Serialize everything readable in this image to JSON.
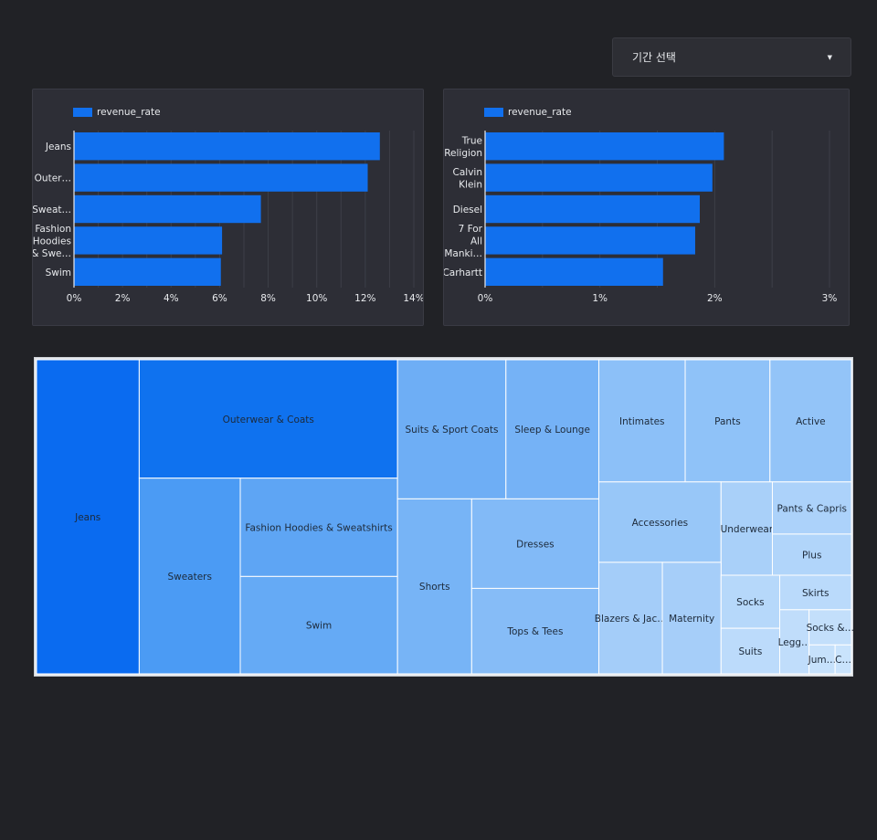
{
  "filter": {
    "label": "기간 선택",
    "arrow_icon": "caret-down-icon"
  },
  "chart_data": [
    {
      "type": "bar",
      "orientation": "horizontal",
      "title": "",
      "legend": "revenue_rate",
      "categories": [
        "Jeans",
        "Outer…",
        "Sweat…",
        "Fashion Hoodies & Swe…",
        "Swim"
      ],
      "values": [
        12.6,
        12.1,
        7.7,
        6.1,
        6.05
      ],
      "xlim": [
        0,
        14
      ],
      "xticks": [
        "0%",
        "2%",
        "4%",
        "6%",
        "8%",
        "10%",
        "12%",
        "14%"
      ],
      "color": "#1170ee"
    },
    {
      "type": "bar",
      "orientation": "horizontal",
      "title": "",
      "legend": "revenue_rate",
      "categories": [
        "True Religion",
        "Calvin Klein",
        "Diesel",
        "7 For All Manki…",
        "Carhartt"
      ],
      "values": [
        2.08,
        1.98,
        1.87,
        1.83,
        1.55
      ],
      "xlim": [
        0,
        3
      ],
      "xticks": [
        "0%",
        "1%",
        "2%",
        "3%"
      ],
      "color": "#1170ee"
    },
    {
      "type": "treemap",
      "title": "",
      "items": [
        {
          "label": "Jeans"
        },
        {
          "label": "Outerwear & Coats"
        },
        {
          "label": "Sweaters"
        },
        {
          "label": "Fashion Hoodies & Sweatshirts"
        },
        {
          "label": "Swim"
        },
        {
          "label": "Suits & Sport Coats"
        },
        {
          "label": "Sleep & Lounge"
        },
        {
          "label": "Shorts"
        },
        {
          "label": "Dresses"
        },
        {
          "label": "Tops & Tees"
        },
        {
          "label": "Intimates"
        },
        {
          "label": "Pants"
        },
        {
          "label": "Active"
        },
        {
          "label": "Accessories"
        },
        {
          "label": "Underwear"
        },
        {
          "label": "Pants & Capris"
        },
        {
          "label": "Plus"
        },
        {
          "label": "Blazers & Jac…"
        },
        {
          "label": "Maternity"
        },
        {
          "label": "Socks"
        },
        {
          "label": "Skirts"
        },
        {
          "label": "Suits"
        },
        {
          "label": "Legg…"
        },
        {
          "label": "Socks &…"
        },
        {
          "label": "Jum…"
        },
        {
          "label": "C…"
        }
      ]
    }
  ]
}
